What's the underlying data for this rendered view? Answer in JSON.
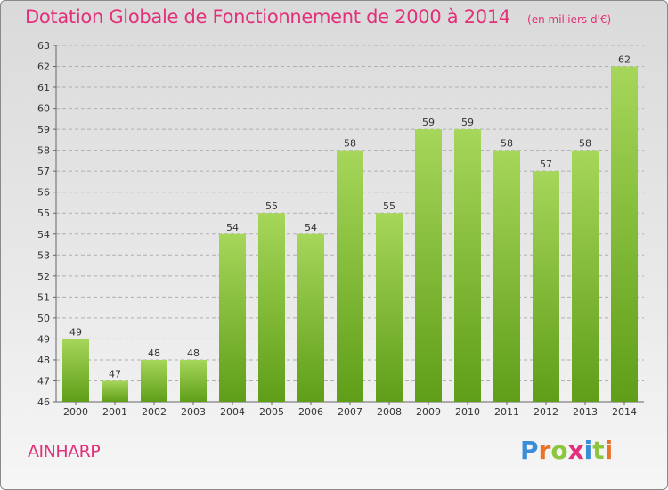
{
  "title": "Dotation Globale de Fonctionnement de 2000 à 2014",
  "subtitle": "(en milliers d'€)",
  "commune": "AINHARP",
  "logo": {
    "letters": [
      "P",
      "r",
      "o",
      "x",
      "i",
      "t",
      "i"
    ],
    "colors": [
      "#3a8ed8",
      "#e8742a",
      "#8cc63e",
      "#e2307a",
      "#3a8ed8",
      "#8cc63e",
      "#e8742a"
    ]
  },
  "colors": {
    "title": "#e2307a",
    "bar_top": "#a6d65a",
    "bar_bottom": "#5f9e18",
    "grid": "#b0b0b0"
  },
  "chart_data": {
    "type": "bar",
    "categories": [
      "2000",
      "2001",
      "2002",
      "2003",
      "2004",
      "2005",
      "2006",
      "2007",
      "2008",
      "2009",
      "2010",
      "2011",
      "2012",
      "2013",
      "2014"
    ],
    "values": [
      49,
      47,
      48,
      48,
      54,
      55,
      54,
      58,
      55,
      59,
      59,
      58,
      57,
      58,
      62
    ],
    "ylim": [
      46,
      63
    ],
    "yticks": [
      46,
      47,
      48,
      49,
      50,
      51,
      52,
      53,
      54,
      55,
      56,
      57,
      58,
      59,
      60,
      61,
      62,
      63
    ],
    "grid": true,
    "data_labels": true
  }
}
